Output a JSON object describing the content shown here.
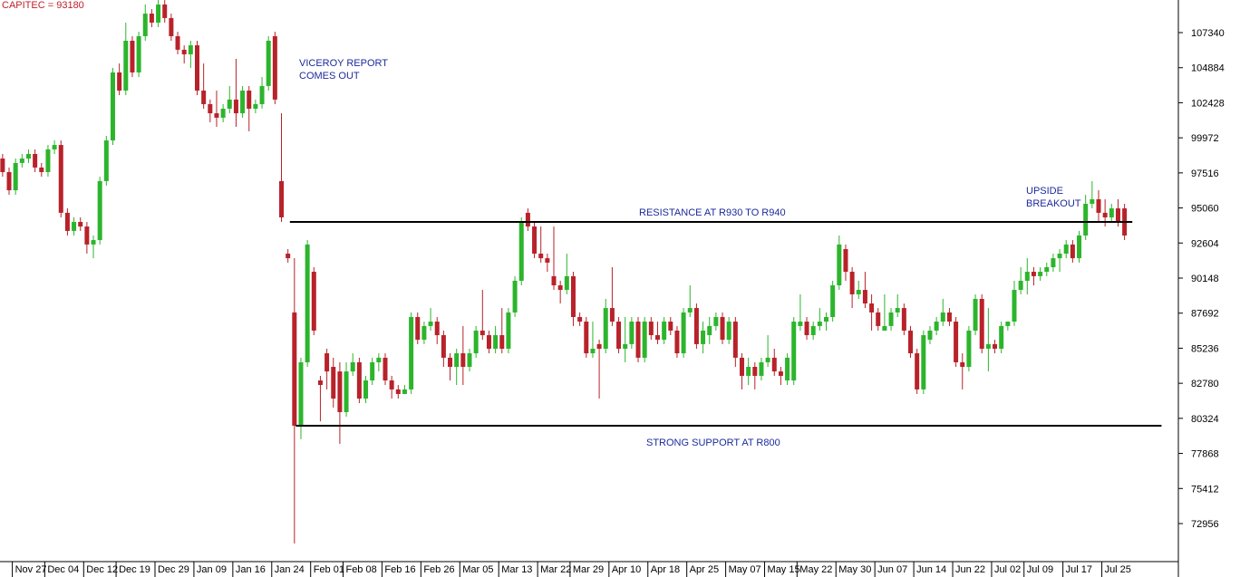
{
  "chart_data": {
    "type": "candlestick",
    "title": "CAPITEC = 93180",
    "up_color": "#2cb52c",
    "down_color": "#b8222a",
    "title_color": "#c0202a",
    "annotation_color": "#1c2a9c",
    "ylim": [
      70418,
      109624
    ],
    "yticks": [
      72956,
      75412,
      77868,
      80324,
      82780,
      85236,
      87692,
      90148,
      92604,
      95060,
      97516,
      99972,
      102428,
      104884,
      107340
    ],
    "xlim": [
      -0.4,
      181.3
    ],
    "xticks": [
      {
        "value": 2,
        "label": "Nov 27"
      },
      {
        "value": 7,
        "label": "Dec 04"
      },
      {
        "value": 13,
        "label": "Dec 12"
      },
      {
        "value": 18,
        "label": "Dec 19"
      },
      {
        "value": 24,
        "label": "Dec 29"
      },
      {
        "value": 30,
        "label": "Jan 09"
      },
      {
        "value": 36,
        "label": "Jan 16"
      },
      {
        "value": 42,
        "label": "Jan 24"
      },
      {
        "value": 48,
        "label": "Feb 01"
      },
      {
        "value": 53,
        "label": "Feb 08"
      },
      {
        "value": 59,
        "label": "Feb 16"
      },
      {
        "value": 65,
        "label": "Feb 26"
      },
      {
        "value": 71,
        "label": "Mar 05"
      },
      {
        "value": 77,
        "label": "Mar 13"
      },
      {
        "value": 83,
        "label": "Mar 22"
      },
      {
        "value": 88,
        "label": "Mar 29"
      },
      {
        "value": 94,
        "label": "Apr 10"
      },
      {
        "value": 100,
        "label": "Apr 18"
      },
      {
        "value": 106,
        "label": "Apr 25"
      },
      {
        "value": 112,
        "label": "May 07"
      },
      {
        "value": 118,
        "label": "May 15"
      },
      {
        "value": 123,
        "label": "May 22"
      },
      {
        "value": 129,
        "label": "May 30"
      },
      {
        "value": 135,
        "label": "Jun 07"
      },
      {
        "value": 141,
        "label": "Jun 14"
      },
      {
        "value": 147,
        "label": "Jun 22"
      },
      {
        "value": 153,
        "label": "Jul 02"
      },
      {
        "value": 158,
        "label": "Jul 09"
      },
      {
        "value": 164,
        "label": "Jul 17"
      },
      {
        "value": 170,
        "label": "Jul 25"
      }
    ],
    "hlines": [
      {
        "value": 94080,
        "label": "RESISTANCE AT R930 TO R940"
      },
      {
        "value": 79810,
        "label": "STRONG SUPPORT AT R800"
      }
    ],
    "annotations": [
      [
        "VICEROY REPORT",
        "COMES OUT"
      ],
      [
        "UPSIDE",
        "BREAKOUT"
      ]
    ],
    "ohlc": [
      [
        98520,
        98840,
        97250,
        97570
      ],
      [
        97570,
        97890,
        95980,
        96300
      ],
      [
        96300,
        98520,
        95980,
        98210
      ],
      [
        98210,
        98840,
        97890,
        98520
      ],
      [
        98520,
        99160,
        98210,
        98840
      ],
      [
        98840,
        99160,
        97570,
        97890
      ],
      [
        97890,
        98210,
        97250,
        97570
      ],
      [
        97570,
        99470,
        97250,
        99160
      ],
      [
        99160,
        99790,
        98840,
        99470
      ],
      [
        99470,
        99790,
        94400,
        94720
      ],
      [
        94720,
        95030,
        93130,
        93450
      ],
      [
        93450,
        94400,
        93130,
        94080
      ],
      [
        94080,
        94400,
        93450,
        93760
      ],
      [
        93760,
        94080,
        91860,
        92500
      ],
      [
        92500,
        93130,
        91540,
        92810
      ],
      [
        92810,
        97250,
        92500,
        96940
      ],
      [
        96940,
        100110,
        96620,
        99790
      ],
      [
        99790,
        104870,
        99470,
        104550
      ],
      [
        104550,
        105180,
        102960,
        103280
      ],
      [
        103280,
        108040,
        102960,
        106770
      ],
      [
        106770,
        107090,
        104230,
        104550
      ],
      [
        104550,
        107400,
        104230,
        107090
      ],
      [
        107090,
        109310,
        106770,
        108670
      ],
      [
        108670,
        108990,
        107720,
        108040
      ],
      [
        108040,
        109620,
        107720,
        109310
      ],
      [
        109310,
        109620,
        108040,
        108360
      ],
      [
        108360,
        108670,
        106770,
        107090
      ],
      [
        107090,
        107400,
        105820,
        106140
      ],
      [
        106140,
        106450,
        105180,
        105820
      ],
      [
        105820,
        106770,
        104870,
        106450
      ],
      [
        106450,
        106770,
        102960,
        103280
      ],
      [
        103280,
        105180,
        102010,
        102330
      ],
      [
        102330,
        102650,
        101060,
        101690
      ],
      [
        101690,
        103280,
        100740,
        101380
      ],
      [
        101380,
        102330,
        101060,
        102010
      ],
      [
        102010,
        103600,
        101690,
        102650
      ],
      [
        102650,
        105500,
        100740,
        101690
      ],
      [
        101690,
        103600,
        101380,
        103280
      ],
      [
        103280,
        103600,
        100430,
        102010
      ],
      [
        102010,
        102650,
        101690,
        102330
      ],
      [
        102330,
        104230,
        102010,
        103600
      ],
      [
        103600,
        107090,
        103280,
        106770
      ],
      [
        107090,
        107400,
        102330,
        102650
      ],
      [
        96940,
        101690,
        94080,
        94400
      ],
      [
        91860,
        92180,
        91230,
        91540
      ],
      [
        87740,
        91540,
        71560,
        79810
      ],
      [
        79810,
        84570,
        78860,
        84250
      ],
      [
        84250,
        92810,
        83930,
        92500
      ],
      [
        90590,
        90910,
        86150,
        86470
      ],
      [
        82980,
        83300,
        80120,
        82660
      ],
      [
        84880,
        85200,
        82350,
        83610
      ],
      [
        83930,
        84570,
        81080,
        81710
      ],
      [
        83610,
        84250,
        78540,
        80760
      ],
      [
        80760,
        84250,
        80440,
        83610
      ],
      [
        83610,
        84880,
        83300,
        84250
      ],
      [
        84250,
        84570,
        81390,
        81710
      ],
      [
        81710,
        83300,
        81390,
        82980
      ],
      [
        82980,
        84570,
        82660,
        84250
      ],
      [
        84250,
        84880,
        83610,
        84570
      ],
      [
        84570,
        84880,
        82660,
        82980
      ],
      [
        82980,
        83300,
        81710,
        82350
      ],
      [
        82350,
        82660,
        81710,
        82030
      ],
      [
        82030,
        82660,
        82030,
        82350
      ],
      [
        82350,
        87740,
        82030,
        87420
      ],
      [
        87420,
        87740,
        85520,
        85830
      ],
      [
        85830,
        87100,
        85520,
        86790
      ],
      [
        86790,
        88050,
        86470,
        87100
      ],
      [
        87100,
        87420,
        85520,
        86150
      ],
      [
        86150,
        86470,
        83930,
        84570
      ],
      [
        84570,
        84880,
        82980,
        83930
      ],
      [
        83930,
        85200,
        82660,
        84880
      ],
      [
        84880,
        86790,
        82660,
        83930
      ],
      [
        83930,
        85200,
        83610,
        84880
      ],
      [
        84880,
        86790,
        84570,
        86470
      ],
      [
        86470,
        89320,
        85830,
        86150
      ],
      [
        86150,
        86470,
        84880,
        85200
      ],
      [
        85200,
        86790,
        84880,
        86150
      ],
      [
        86150,
        88050,
        84880,
        85200
      ],
      [
        85200,
        88050,
        84880,
        87740
      ],
      [
        87740,
        90280,
        87420,
        89960
      ],
      [
        89960,
        94400,
        89640,
        94080
      ],
      [
        94720,
        95030,
        93450,
        93760
      ],
      [
        93760,
        94080,
        91540,
        91860
      ],
      [
        91860,
        93760,
        91230,
        91540
      ],
      [
        91540,
        91860,
        90590,
        91230
      ],
      [
        90280,
        93760,
        89320,
        89640
      ],
      [
        89640,
        89960,
        88370,
        89320
      ],
      [
        89320,
        91860,
        89010,
        90280
      ],
      [
        90280,
        90590,
        86790,
        87420
      ],
      [
        87420,
        87740,
        86790,
        87100
      ],
      [
        87100,
        87420,
        84570,
        84880
      ],
      [
        84880,
        87100,
        84570,
        85200
      ],
      [
        85520,
        85830,
        81710,
        85200
      ],
      [
        85200,
        88690,
        84880,
        88050
      ],
      [
        88050,
        90910,
        86790,
        87100
      ],
      [
        87100,
        87420,
        84880,
        85200
      ],
      [
        85200,
        87420,
        84250,
        85520
      ],
      [
        85520,
        87420,
        85200,
        87100
      ],
      [
        87100,
        87420,
        84250,
        84570
      ],
      [
        84570,
        87420,
        84250,
        87100
      ],
      [
        87100,
        87420,
        85830,
        86150
      ],
      [
        86150,
        87100,
        85520,
        85830
      ],
      [
        85830,
        87420,
        85520,
        87100
      ],
      [
        87100,
        87420,
        86150,
        86470
      ],
      [
        86470,
        86790,
        84570,
        84880
      ],
      [
        84880,
        88050,
        84570,
        87740
      ],
      [
        87740,
        89640,
        87420,
        88050
      ],
      [
        88050,
        88370,
        85200,
        85520
      ],
      [
        85520,
        87100,
        84880,
        86470
      ],
      [
        86150,
        87420,
        85520,
        86790
      ],
      [
        86790,
        87740,
        86470,
        87420
      ],
      [
        87420,
        87740,
        85520,
        85830
      ],
      [
        85830,
        87420,
        85520,
        87100
      ],
      [
        87100,
        87420,
        83930,
        84570
      ],
      [
        84570,
        84880,
        82350,
        83300
      ],
      [
        83300,
        84570,
        82660,
        83930
      ],
      [
        83930,
        84250,
        82350,
        83300
      ],
      [
        83300,
        84570,
        82980,
        84250
      ],
      [
        84250,
        86150,
        83930,
        84570
      ],
      [
        84570,
        85200,
        83300,
        83610
      ],
      [
        83610,
        83930,
        82660,
        83300
      ],
      [
        82980,
        84880,
        82660,
        84570
      ],
      [
        82980,
        87420,
        82660,
        87100
      ],
      [
        86790,
        89010,
        86470,
        87100
      ],
      [
        87100,
        87420,
        85830,
        86150
      ],
      [
        86150,
        87100,
        85830,
        86790
      ],
      [
        86790,
        88050,
        86470,
        87100
      ],
      [
        87100,
        87740,
        86470,
        87420
      ],
      [
        87420,
        89960,
        87100,
        89640
      ],
      [
        89640,
        93130,
        89320,
        92500
      ],
      [
        92180,
        92500,
        89960,
        90590
      ],
      [
        90590,
        90910,
        88050,
        89010
      ],
      [
        89010,
        89960,
        88690,
        89320
      ],
      [
        89320,
        90590,
        88050,
        88370
      ],
      [
        88370,
        89010,
        86470,
        87740
      ],
      [
        87740,
        88050,
        86470,
        86790
      ],
      [
        86470,
        89010,
        86470,
        86790
      ],
      [
        86790,
        88050,
        86470,
        87740
      ],
      [
        87740,
        89010,
        87420,
        88050
      ],
      [
        88050,
        88370,
        86150,
        86470
      ],
      [
        86470,
        86790,
        84570,
        84880
      ],
      [
        84880,
        85200,
        82030,
        82350
      ],
      [
        82350,
        86470,
        82030,
        86150
      ],
      [
        85830,
        86790,
        85520,
        86470
      ],
      [
        86470,
        87420,
        86150,
        87100
      ],
      [
        87100,
        88690,
        86790,
        87740
      ],
      [
        87740,
        88050,
        86790,
        87100
      ],
      [
        87100,
        87420,
        83930,
        84250
      ],
      [
        84250,
        84880,
        82350,
        83930
      ],
      [
        83930,
        86790,
        83610,
        86470
      ],
      [
        86470,
        89010,
        86150,
        88690
      ],
      [
        88690,
        89010,
        84880,
        85200
      ],
      [
        85200,
        88050,
        83610,
        85520
      ],
      [
        85520,
        85830,
        84880,
        85200
      ],
      [
        85200,
        87100,
        84880,
        86790
      ],
      [
        86790,
        87100,
        86470,
        87100
      ],
      [
        87100,
        89960,
        86790,
        89320
      ],
      [
        89320,
        90910,
        89010,
        89960
      ],
      [
        89960,
        91540,
        89010,
        90590
      ],
      [
        90590,
        90910,
        89640,
        90280
      ],
      [
        90280,
        90910,
        89960,
        90590
      ],
      [
        90590,
        91230,
        90280,
        90910
      ],
      [
        90910,
        91860,
        90590,
        91540
      ],
      [
        91540,
        92180,
        90590,
        91860
      ],
      [
        91860,
        92810,
        91540,
        92500
      ],
      [
        92500,
        92810,
        91230,
        91540
      ],
      [
        91540,
        93450,
        91230,
        93130
      ],
      [
        93130,
        95980,
        92810,
        95350
      ],
      [
        95350,
        96940,
        95030,
        95670
      ],
      [
        95670,
        96300,
        94080,
        94720
      ],
      [
        94720,
        95670,
        93760,
        94400
      ],
      [
        94400,
        95350,
        94080,
        95030
      ],
      [
        95030,
        95670,
        93760,
        94080
      ],
      [
        95030,
        95350,
        92810,
        93130
      ]
    ]
  }
}
